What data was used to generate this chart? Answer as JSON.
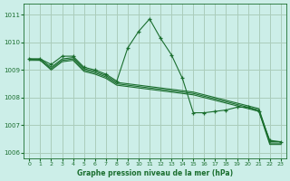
{
  "title": "Graphe pression niveau de la mer (hPa)",
  "bg_color": "#cceee8",
  "grid_color": "#aaccbb",
  "line_color": "#1a6e2e",
  "xlim": [
    -0.5,
    23.5
  ],
  "ylim": [
    1005.8,
    1011.4
  ],
  "yticks": [
    1006,
    1007,
    1008,
    1009,
    1010,
    1011
  ],
  "xticks": [
    0,
    1,
    2,
    3,
    4,
    5,
    6,
    7,
    8,
    9,
    10,
    11,
    12,
    13,
    14,
    15,
    16,
    17,
    18,
    19,
    20,
    21,
    22,
    23
  ],
  "series": [
    {
      "x": [
        0,
        1,
        2,
        3,
        4,
        5,
        6,
        7,
        8,
        9,
        10,
        11,
        12,
        13,
        14,
        15,
        16,
        17,
        18,
        19,
        20,
        21,
        22,
        23
      ],
      "y": [
        1009.4,
        1009.4,
        1009.2,
        1009.5,
        1009.5,
        1009.1,
        1009.0,
        1008.85,
        1008.6,
        1009.8,
        1010.4,
        1010.85,
        1010.15,
        1009.55,
        1008.7,
        1007.45,
        1007.45,
        1007.5,
        1007.55,
        1007.65,
        1007.65,
        1007.5,
        1006.45,
        1006.4
      ],
      "marker": true
    },
    {
      "x": [
        0,
        1,
        2,
        3,
        4,
        5,
        6,
        7,
        8,
        9,
        10,
        11,
        12,
        13,
        14,
        15,
        16,
        17,
        18,
        19,
        20,
        21,
        22,
        23
      ],
      "y": [
        1009.4,
        1009.4,
        1009.1,
        1009.4,
        1009.45,
        1009.05,
        1008.95,
        1008.8,
        1008.55,
        1008.5,
        1008.45,
        1008.4,
        1008.35,
        1008.3,
        1008.25,
        1008.2,
        1008.1,
        1008.0,
        1007.9,
        1007.8,
        1007.7,
        1007.6,
        1006.4,
        1006.4
      ],
      "marker": false
    },
    {
      "x": [
        0,
        1,
        2,
        3,
        4,
        5,
        6,
        7,
        8,
        9,
        10,
        11,
        12,
        13,
        14,
        15,
        16,
        17,
        18,
        19,
        20,
        21,
        22,
        23
      ],
      "y": [
        1009.4,
        1009.35,
        1009.05,
        1009.35,
        1009.4,
        1009.0,
        1008.9,
        1008.75,
        1008.5,
        1008.45,
        1008.4,
        1008.35,
        1008.3,
        1008.25,
        1008.2,
        1008.15,
        1008.05,
        1007.95,
        1007.85,
        1007.75,
        1007.65,
        1007.55,
        1006.35,
        1006.35
      ],
      "marker": false
    },
    {
      "x": [
        0,
        1,
        2,
        3,
        4,
        5,
        6,
        7,
        8,
        9,
        10,
        11,
        12,
        13,
        14,
        15,
        16,
        17,
        18,
        19,
        20,
        21,
        22,
        23
      ],
      "y": [
        1009.35,
        1009.35,
        1009.0,
        1009.3,
        1009.35,
        1008.95,
        1008.85,
        1008.7,
        1008.45,
        1008.4,
        1008.35,
        1008.3,
        1008.25,
        1008.2,
        1008.15,
        1008.1,
        1008.0,
        1007.9,
        1007.8,
        1007.7,
        1007.6,
        1007.5,
        1006.3,
        1006.3
      ],
      "marker": false
    }
  ]
}
